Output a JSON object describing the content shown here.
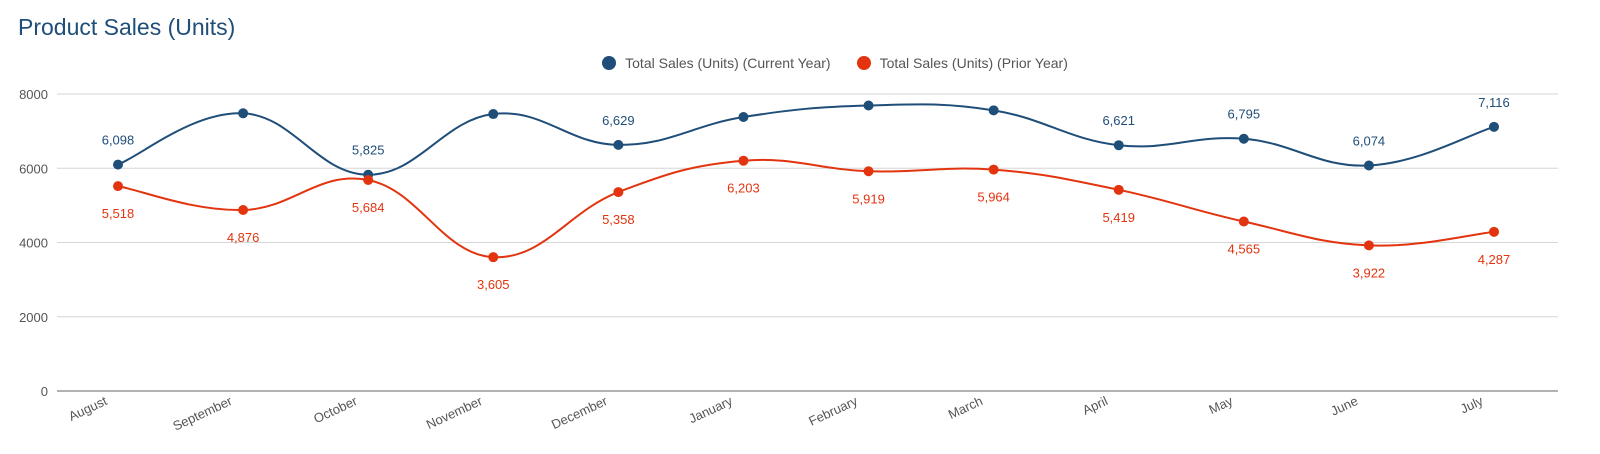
{
  "colors": {
    "current": "#1f4e79",
    "prior": "#e2340f",
    "grid": "#d6d6d6",
    "axis": "#666666"
  },
  "chart_data": {
    "type": "line",
    "title": "Product Sales (Units)",
    "categories": [
      "August",
      "September",
      "October",
      "November",
      "December",
      "January",
      "February",
      "March",
      "April",
      "May",
      "June",
      "July"
    ],
    "series": [
      {
        "name": "Total Sales (Units) (Current Year)",
        "values": [
          6098,
          7480,
          5825,
          7460,
          6629,
          7380,
          7690,
          7560,
          6621,
          6795,
          6074,
          7116
        ],
        "labels": [
          "6,098",
          "",
          "5,825",
          "",
          "6,629",
          "",
          "",
          "",
          "6,621",
          "6,795",
          "6,074",
          "7,116"
        ]
      },
      {
        "name": "Total Sales (Units) (Prior Year)",
        "values": [
          5518,
          4876,
          5684,
          3605,
          5358,
          6203,
          5919,
          5964,
          5419,
          4565,
          3922,
          4287
        ],
        "labels": [
          "5,518",
          "4,876",
          "5,684",
          "3,605",
          "5,358",
          "6,203",
          "5,919",
          "5,964",
          "5,419",
          "4,565",
          "3,922",
          "4,287"
        ]
      }
    ],
    "yticks": [
      "0",
      "2000",
      "4000",
      "6000",
      "8000"
    ],
    "ylim": [
      0,
      8000
    ],
    "grid": true,
    "legend": "top-center"
  }
}
